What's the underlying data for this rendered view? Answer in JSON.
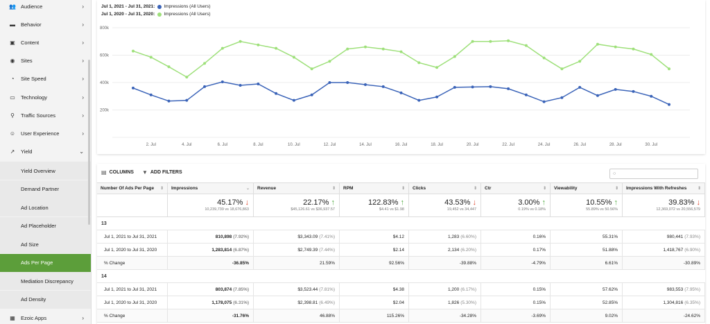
{
  "sidebar": {
    "items": [
      {
        "label": "Audience",
        "icon": "users-icon",
        "chev": "›"
      },
      {
        "label": "Behavior",
        "icon": "behavior-icon",
        "chev": "›"
      },
      {
        "label": "Content",
        "icon": "content-icon",
        "chev": "›"
      },
      {
        "label": "Sites",
        "icon": "globe-icon",
        "chev": "›"
      },
      {
        "label": "Site Speed",
        "icon": "speed-icon",
        "chev": "›"
      },
      {
        "label": "Technology",
        "icon": "laptop-icon",
        "chev": "›"
      },
      {
        "label": "Traffic Sources",
        "icon": "sources-icon",
        "chev": "›"
      },
      {
        "label": "User Experience",
        "icon": "smile-icon",
        "chev": "›"
      },
      {
        "label": "Yield",
        "icon": "chart-line-icon",
        "chev": "⌄"
      }
    ],
    "sub_items": [
      {
        "label": "Yield Overview",
        "active": false
      },
      {
        "label": "Demand Partner",
        "active": false
      },
      {
        "label": "Ad Location",
        "active": false
      },
      {
        "label": "Ad Placeholder",
        "active": false
      },
      {
        "label": "Ad Size",
        "active": false
      },
      {
        "label": "Ads Per Page",
        "active": true
      },
      {
        "label": "Mediation Discrepancy",
        "active": false
      },
      {
        "label": "Ad Density",
        "active": false
      }
    ],
    "bottom_item": {
      "label": "Ezoic Apps",
      "icon": "grid-icon",
      "chev": "›"
    }
  },
  "chart": {
    "legend": [
      {
        "range": "Jul 1, 2021 - Jul 31, 2021:",
        "label": "Impressions (All Users)",
        "color": "#3a63b8"
      },
      {
        "range": "Jul 1, 2020 - Jul 31, 2020:",
        "label": "Impressions (All Users)",
        "color": "#9ee07a"
      }
    ]
  },
  "chart_data": {
    "type": "line",
    "x": [
      "1. Jul",
      "2. Jul",
      "3. Jul",
      "4. Jul",
      "5. Jul",
      "6. Jul",
      "7. Jul",
      "8. Jul",
      "9. Jul",
      "10. Jul",
      "11. Jul",
      "12. Jul",
      "13. Jul",
      "14. Jul",
      "15. Jul",
      "16. Jul",
      "17. Jul",
      "18. Jul",
      "19. Jul",
      "20. Jul",
      "21. Jul",
      "22. Jul",
      "23. Jul",
      "24. Jul",
      "25. Jul",
      "26. Jul",
      "27. Jul",
      "28. Jul",
      "29. Jul",
      "30. Jul",
      "31. Jul"
    ],
    "x_tick_labels": [
      "2. Jul",
      "4. Jul",
      "6. Jul",
      "8. Jul",
      "10. Jul",
      "12. Jul",
      "14. Jul",
      "16. Jul",
      "18. Jul",
      "20. Jul",
      "22. Jul",
      "24. Jul",
      "26. Jul",
      "28. Jul",
      "30. Jul"
    ],
    "y_tick_labels": [
      "200k",
      "400k",
      "600k",
      "800k"
    ],
    "ylim": [
      0,
      800000
    ],
    "series": [
      {
        "name": "Jul 1, 2021 - Jul 31, 2021: Impressions (All Users)",
        "color": "#3a63b8",
        "values": [
          360000,
          310000,
          265000,
          270000,
          370000,
          405000,
          380000,
          390000,
          320000,
          270000,
          310000,
          400000,
          400000,
          385000,
          370000,
          325000,
          270000,
          295000,
          365000,
          368000,
          370000,
          355000,
          310000,
          260000,
          290000,
          365000,
          305000,
          350000,
          335000,
          300000,
          240000
        ]
      },
      {
        "name": "Jul 1, 2020 - Jul 31, 2020: Impressions (All Users)",
        "color": "#9ee07a",
        "values": [
          630000,
          585000,
          515000,
          440000,
          540000,
          650000,
          700000,
          675000,
          650000,
          585000,
          500000,
          555000,
          645000,
          660000,
          645000,
          625000,
          545000,
          510000,
          590000,
          700000,
          700000,
          705000,
          670000,
          580000,
          500000,
          555000,
          680000,
          660000,
          645000,
          605000,
          500000
        ]
      }
    ],
    "grid": true
  },
  "table": {
    "toolbar": {
      "columns": "COLUMNS",
      "filters": "ADD FILTERS"
    },
    "columns": [
      "Number Of Ads Per Page",
      "Impressions",
      "Revenue",
      "RPM",
      "Clicks",
      "Ctr",
      "Viewability",
      "Impressions With Refreshes"
    ],
    "summary": [
      {
        "big": "",
        "small": "",
        "dir": ""
      },
      {
        "big": "45.17%",
        "small": "10,239,739 vs 18,676,863",
        "dir": "down"
      },
      {
        "big": "22.17%",
        "small": "$45,126.61 vs $36,937.57",
        "dir": "up"
      },
      {
        "big": "122.83%",
        "small": "$4.41 vs $1.98",
        "dir": "up"
      },
      {
        "big": "43.53%",
        "small": "19,452 vs 34,447",
        "dir": "down"
      },
      {
        "big": "3.00%",
        "small": "0.19% vs 0.18%",
        "dir": "up"
      },
      {
        "big": "10.55%",
        "small": "55.89% vs 50.56%",
        "dir": "up"
      },
      {
        "big": "39.83%",
        "small": "12,369,072 vs 20,556,579",
        "dir": "down"
      }
    ],
    "groups": [
      {
        "label": "13",
        "rows": [
          {
            "cells": [
              [
                "Jul 1, 2021 to Jul 31, 2021",
                ""
              ],
              [
                "810,898",
                "(7.92%)"
              ],
              [
                "$3,343.09",
                "(7.41%)"
              ],
              [
                "$4.12",
                ""
              ],
              [
                "1,283",
                "(6.60%)"
              ],
              [
                "0.16%",
                ""
              ],
              [
                "55.31%",
                ""
              ],
              [
                "980,441",
                "(7.93%)"
              ]
            ]
          },
          {
            "cells": [
              [
                "Jul 1, 2020 to Jul 31, 2020",
                ""
              ],
              [
                "1,283,814",
                "(6.87%)"
              ],
              [
                "$2,749.39",
                "(7.44%)"
              ],
              [
                "$2.14",
                ""
              ],
              [
                "2,134",
                "(6.20%)"
              ],
              [
                "0.17%",
                ""
              ],
              [
                "51.88%",
                ""
              ],
              [
                "1,418,767",
                "(6.90%)"
              ]
            ]
          },
          {
            "cells": [
              [
                "% Change",
                ""
              ],
              [
                "-36.85%",
                ""
              ],
              [
                "21.59%",
                ""
              ],
              [
                "92.56%",
                ""
              ],
              [
                "-39.88%",
                ""
              ],
              [
                "-4.79%",
                ""
              ],
              [
                "6.61%",
                ""
              ],
              [
                "-30.89%",
                ""
              ]
            ]
          }
        ]
      },
      {
        "label": "14",
        "rows": [
          {
            "cells": [
              [
                "Jul 1, 2021 to Jul 31, 2021",
                ""
              ],
              [
                "803,874",
                "(7.85%)"
              ],
              [
                "$3,523.44",
                "(7.81%)"
              ],
              [
                "$4.38",
                ""
              ],
              [
                "1,200",
                "(6.17%)"
              ],
              [
                "0.15%",
                ""
              ],
              [
                "57.62%",
                ""
              ],
              [
                "983,553",
                "(7.95%)"
              ]
            ]
          },
          {
            "cells": [
              [
                "Jul 1, 2020 to Jul 31, 2020",
                ""
              ],
              [
                "1,178,075",
                "(6.31%)"
              ],
              [
                "$2,398.81",
                "(6.49%)"
              ],
              [
                "$2.04",
                ""
              ],
              [
                "1,826",
                "(5.30%)"
              ],
              [
                "0.15%",
                ""
              ],
              [
                "52.85%",
                ""
              ],
              [
                "1,304,816",
                "(6.35%)"
              ]
            ]
          },
          {
            "cells": [
              [
                "% Change",
                ""
              ],
              [
                "-31.76%",
                ""
              ],
              [
                "46.88%",
                ""
              ],
              [
                "115.26%",
                ""
              ],
              [
                "-34.28%",
                ""
              ],
              [
                "-3.69%",
                ""
              ],
              [
                "9.02%",
                ""
              ],
              [
                "-24.62%",
                ""
              ]
            ]
          }
        ]
      }
    ]
  }
}
